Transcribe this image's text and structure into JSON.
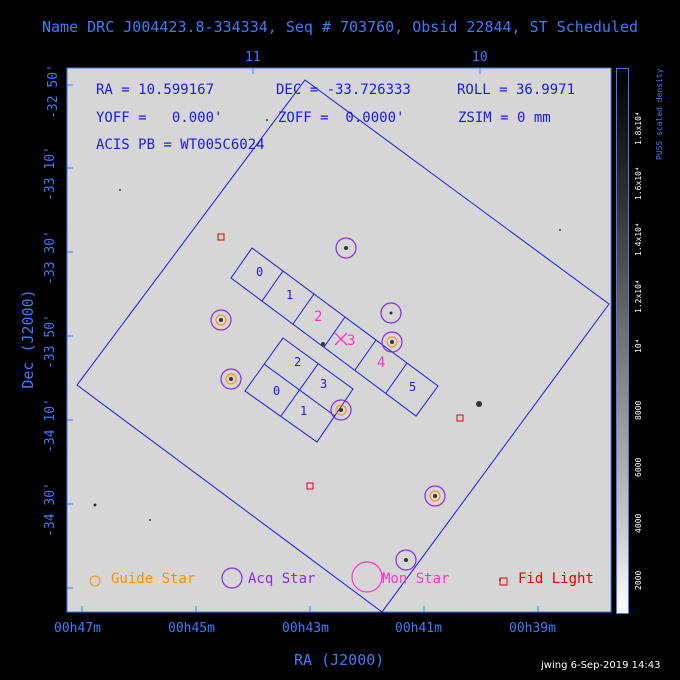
{
  "title": "Name DRC J004423.8-334334, Seq # 703760, Obsid 22844, ST Scheduled",
  "info": {
    "ra": "RA = 10.599167",
    "dec": "DEC = -33.726333",
    "roll": "ROLL = 36.9971",
    "yoff": "YOFF =   0.000'",
    "zoff": "ZOFF =  0.0000'",
    "zsim": "ZSIM = 0 mm",
    "acis": "ACIS PB = WT005C6024"
  },
  "top_axis_ticks": [
    "11",
    "10"
  ],
  "dec_ticks": [
    "-32 50'",
    "-33 10'",
    "-33 30'",
    "-33 50'",
    "-34 10'",
    "-34 30'"
  ],
  "ra_ticks": [
    "00h47m",
    "00h45m",
    "00h43m",
    "00h41m",
    "00h39m"
  ],
  "x_axis_title": "RA (J2000)",
  "y_axis_title": "Dec (J2000)",
  "ccd_labels": [
    "0",
    "1",
    "2",
    "3",
    "4",
    "5",
    "2",
    "3",
    "0",
    "1"
  ],
  "legend": {
    "guide": "Guide Star",
    "acq": "Acq Star",
    "mon": "Mon Star",
    "fid": "Fid Light"
  },
  "colorbar": {
    "title": "PUSS scaled density",
    "ticks": [
      "2000",
      "4000",
      "6000",
      "8000",
      "10⁴",
      "1.2x10⁴",
      "1.4x10⁴",
      "1.6x10⁴",
      "1.8x10⁴"
    ]
  },
  "footer": "jwing  6-Sep-2019 14:43",
  "colors": {
    "frame": "#3d7cff",
    "info_text": "#1a1ae6",
    "guide": "#ff8c00",
    "acq": "#8a2be2",
    "mon": "#ff33cc",
    "fid": "#e60000"
  }
}
